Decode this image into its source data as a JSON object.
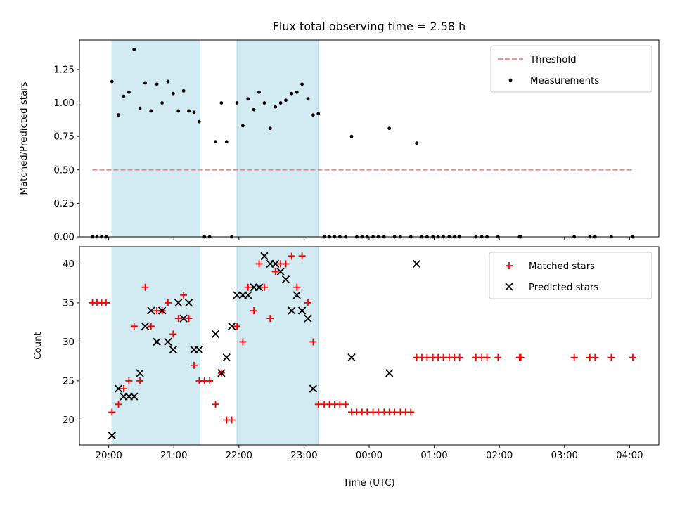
{
  "chart_data": {
    "title": "Flux total observing time = 2.58 h",
    "xlabel": "Time (UTC)",
    "x_tick_labels": [
      "20:00",
      "21:00",
      "22:00",
      "23:00",
      "00:00",
      "01:00",
      "02:00",
      "03:00",
      "04:00"
    ],
    "x_range_hours": [
      19.55,
      28.45
    ],
    "shaded_intervals": [
      [
        20.05,
        21.4
      ],
      [
        21.97,
        23.22
      ]
    ],
    "shade_color": "#add8e6",
    "panels": [
      {
        "type": "scatter",
        "ylabel": "Matched/Predicted stars",
        "ylim": [
          0,
          1.47
        ],
        "y_tick_labels": [
          "0.00",
          "0.25",
          "0.50",
          "0.75",
          "1.00",
          "1.25"
        ],
        "legend": {
          "placement": "top-right",
          "entries": [
            "Threshold",
            "Measurements"
          ]
        },
        "threshold": {
          "name": "Threshold",
          "value": 0.5,
          "x_start": 19.75,
          "x_end": 28.05,
          "color": "#ff7f7f"
        },
        "series": [
          {
            "name": "Measurements",
            "color": "#000000",
            "points": [
              [
                19.75,
                0
              ],
              [
                19.82,
                0
              ],
              [
                19.89,
                0
              ],
              [
                19.96,
                0
              ],
              [
                20.05,
                1.16
              ],
              [
                20.15,
                0.91
              ],
              [
                20.23,
                1.05
              ],
              [
                20.31,
                1.08
              ],
              [
                20.39,
                1.4
              ],
              [
                20.48,
                0.96
              ],
              [
                20.56,
                1.15
              ],
              [
                20.65,
                0.94
              ],
              [
                20.74,
                1.14
              ],
              [
                20.82,
                1.0
              ],
              [
                20.91,
                1.16
              ],
              [
                20.99,
                1.07
              ],
              [
                21.07,
                0.94
              ],
              [
                21.15,
                1.09
              ],
              [
                21.23,
                0.94
              ],
              [
                21.31,
                0.93
              ],
              [
                21.39,
                0.86
              ],
              [
                21.47,
                0
              ],
              [
                21.55,
                0
              ],
              [
                21.64,
                0.71
              ],
              [
                21.73,
                1.0
              ],
              [
                21.81,
                0.71
              ],
              [
                21.89,
                0
              ],
              [
                21.97,
                1.0
              ],
              [
                22.06,
                0.83
              ],
              [
                22.14,
                1.03
              ],
              [
                22.23,
                0.95
              ],
              [
                22.31,
                1.08
              ],
              [
                22.39,
                1.0
              ],
              [
                22.48,
                0.81
              ],
              [
                22.56,
                0.97
              ],
              [
                22.64,
                1.0
              ],
              [
                22.72,
                1.02
              ],
              [
                22.81,
                1.07
              ],
              [
                22.89,
                1.08
              ],
              [
                22.97,
                1.14
              ],
              [
                23.06,
                1.03
              ],
              [
                23.14,
                0.91
              ],
              [
                23.22,
                0.92
              ],
              [
                23.31,
                0
              ],
              [
                23.39,
                0
              ],
              [
                23.47,
                0
              ],
              [
                23.55,
                0
              ],
              [
                23.64,
                0
              ],
              [
                23.73,
                0.75
              ],
              [
                23.81,
                0
              ],
              [
                23.89,
                0
              ],
              [
                23.97,
                0
              ],
              [
                24.06,
                0
              ],
              [
                24.14,
                0
              ],
              [
                24.23,
                0
              ],
              [
                24.31,
                0.81
              ],
              [
                24.39,
                0
              ],
              [
                24.48,
                0
              ],
              [
                24.64,
                0
              ],
              [
                24.73,
                0.7
              ],
              [
                24.81,
                0
              ],
              [
                24.89,
                0
              ],
              [
                24.98,
                0
              ],
              [
                25.06,
                0
              ],
              [
                25.14,
                0
              ],
              [
                25.23,
                0
              ],
              [
                25.31,
                0
              ],
              [
                25.39,
                0
              ],
              [
                25.64,
                0
              ],
              [
                25.73,
                0
              ],
              [
                25.81,
                0
              ],
              [
                25.98,
                0
              ],
              [
                26.31,
                0
              ],
              [
                26.33,
                0
              ],
              [
                27.15,
                0
              ],
              [
                27.39,
                0
              ],
              [
                27.47,
                0
              ],
              [
                27.72,
                0
              ],
              [
                28.05,
                0
              ]
            ]
          }
        ]
      },
      {
        "type": "scatter",
        "ylabel": "Count",
        "ylim": [
          16.8,
          42.2
        ],
        "y_tick_labels": [
          "20",
          "25",
          "30",
          "35",
          "40"
        ],
        "legend": {
          "placement": "top-right",
          "entries": [
            "Matched stars",
            "Predicted stars"
          ]
        },
        "series": [
          {
            "name": "Matched stars",
            "marker": "plus",
            "color": "#ff0000",
            "points": [
              [
                19.75,
                35
              ],
              [
                19.82,
                35
              ],
              [
                19.89,
                35
              ],
              [
                19.96,
                35
              ],
              [
                20.05,
                21
              ],
              [
                20.15,
                22
              ],
              [
                20.23,
                24
              ],
              [
                20.31,
                25
              ],
              [
                20.39,
                32
              ],
              [
                20.48,
                25
              ],
              [
                20.56,
                37
              ],
              [
                20.65,
                32
              ],
              [
                20.74,
                34
              ],
              [
                20.82,
                34
              ],
              [
                20.91,
                35
              ],
              [
                20.99,
                31
              ],
              [
                21.07,
                33
              ],
              [
                21.15,
                36
              ],
              [
                21.23,
                33
              ],
              [
                21.31,
                27
              ],
              [
                21.39,
                25
              ],
              [
                21.47,
                25
              ],
              [
                21.55,
                25
              ],
              [
                21.64,
                22
              ],
              [
                21.73,
                26
              ],
              [
                21.81,
                20
              ],
              [
                21.89,
                20
              ],
              [
                21.97,
                32
              ],
              [
                22.06,
                30
              ],
              [
                22.14,
                37
              ],
              [
                22.23,
                34
              ],
              [
                22.31,
                40
              ],
              [
                22.39,
                37
              ],
              [
                22.48,
                33
              ],
              [
                22.56,
                39
              ],
              [
                22.64,
                40
              ],
              [
                22.72,
                40
              ],
              [
                22.81,
                41
              ],
              [
                22.89,
                37
              ],
              [
                22.97,
                41
              ],
              [
                23.06,
                35
              ],
              [
                23.14,
                30
              ],
              [
                23.22,
                22
              ],
              [
                23.31,
                22
              ],
              [
                23.39,
                22
              ],
              [
                23.47,
                22
              ],
              [
                23.55,
                22
              ],
              [
                23.64,
                22
              ],
              [
                23.73,
                21
              ],
              [
                23.81,
                21
              ],
              [
                23.89,
                21
              ],
              [
                23.97,
                21
              ],
              [
                24.06,
                21
              ],
              [
                24.14,
                21
              ],
              [
                24.23,
                21
              ],
              [
                24.31,
                21
              ],
              [
                24.39,
                21
              ],
              [
                24.48,
                21
              ],
              [
                24.56,
                21
              ],
              [
                24.64,
                21
              ],
              [
                24.73,
                28
              ],
              [
                24.81,
                28
              ],
              [
                24.89,
                28
              ],
              [
                24.98,
                28
              ],
              [
                25.06,
                28
              ],
              [
                25.14,
                28
              ],
              [
                25.23,
                28
              ],
              [
                25.31,
                28
              ],
              [
                25.39,
                28
              ],
              [
                25.64,
                28
              ],
              [
                25.73,
                28
              ],
              [
                25.81,
                28
              ],
              [
                25.98,
                28
              ],
              [
                26.31,
                28
              ],
              [
                26.33,
                28
              ],
              [
                27.15,
                28
              ],
              [
                27.39,
                28
              ],
              [
                27.47,
                28
              ],
              [
                27.72,
                28
              ],
              [
                28.05,
                28
              ]
            ]
          },
          {
            "name": "Predicted stars",
            "marker": "x",
            "color": "#000000",
            "points": [
              [
                20.05,
                18
              ],
              [
                20.15,
                24
              ],
              [
                20.23,
                23
              ],
              [
                20.31,
                23
              ],
              [
                20.39,
                23
              ],
              [
                20.48,
                26
              ],
              [
                20.56,
                32
              ],
              [
                20.65,
                34
              ],
              [
                20.74,
                30
              ],
              [
                20.82,
                34
              ],
              [
                20.91,
                30
              ],
              [
                20.99,
                29
              ],
              [
                21.07,
                35
              ],
              [
                21.15,
                33
              ],
              [
                21.23,
                35
              ],
              [
                21.31,
                29
              ],
              [
                21.39,
                29
              ],
              [
                21.64,
                31
              ],
              [
                21.73,
                26
              ],
              [
                21.81,
                28
              ],
              [
                21.89,
                32
              ],
              [
                21.97,
                36
              ],
              [
                22.06,
                36
              ],
              [
                22.14,
                36
              ],
              [
                22.23,
                37
              ],
              [
                22.31,
                37
              ],
              [
                22.39,
                41
              ],
              [
                22.48,
                40
              ],
              [
                22.56,
                40
              ],
              [
                22.64,
                39
              ],
              [
                22.72,
                38
              ],
              [
                22.81,
                34
              ],
              [
                22.89,
                36
              ],
              [
                22.97,
                34
              ],
              [
                23.06,
                33
              ],
              [
                23.14,
                24
              ],
              [
                23.73,
                28
              ],
              [
                24.31,
                26
              ],
              [
                24.73,
                40
              ]
            ]
          }
        ]
      }
    ]
  }
}
